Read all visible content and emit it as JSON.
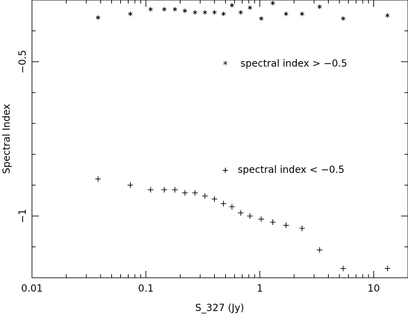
{
  "chart_data": {
    "type": "scatter",
    "xlabel": "S_327 (Jy)",
    "ylabel": "Spectral Index",
    "xscale": "log",
    "xlim": [
      0.01,
      20
    ],
    "ylim": [
      -1.2,
      -0.3
    ],
    "xticks": [
      0.01,
      0.1,
      1,
      10
    ],
    "xtick_labels": [
      "0.01",
      "0.1",
      "1",
      "10"
    ],
    "yticks": [
      -0.5,
      -1
    ],
    "ytick_labels": [
      "−0.5",
      "−1"
    ],
    "grid": false,
    "legend_placement": "right",
    "series": [
      {
        "name": "spectral index > −0.5",
        "marker": "*",
        "points": [
          [
            0.038,
            -0.357
          ],
          [
            0.073,
            -0.345
          ],
          [
            0.11,
            -0.33
          ],
          [
            0.145,
            -0.33
          ],
          [
            0.18,
            -0.33
          ],
          [
            0.22,
            -0.335
          ],
          [
            0.27,
            -0.34
          ],
          [
            0.33,
            -0.34
          ],
          [
            0.4,
            -0.34
          ],
          [
            0.48,
            -0.345
          ],
          [
            0.57,
            -0.317
          ],
          [
            0.68,
            -0.34
          ],
          [
            0.82,
            -0.325
          ],
          [
            1.03,
            -0.36
          ],
          [
            1.3,
            -0.31
          ],
          [
            1.7,
            -0.345
          ],
          [
            2.35,
            -0.345
          ],
          [
            3.35,
            -0.322
          ],
          [
            5.4,
            -0.36
          ],
          [
            13.2,
            -0.35
          ]
        ]
      },
      {
        "name": "spectral index < −0.5",
        "marker": "+",
        "points": [
          [
            0.038,
            -0.88
          ],
          [
            0.073,
            -0.9
          ],
          [
            0.11,
            -0.915
          ],
          [
            0.145,
            -0.915
          ],
          [
            0.18,
            -0.915
          ],
          [
            0.22,
            -0.925
          ],
          [
            0.27,
            -0.925
          ],
          [
            0.33,
            -0.935
          ],
          [
            0.4,
            -0.945
          ],
          [
            0.48,
            -0.96
          ],
          [
            0.57,
            -0.97
          ],
          [
            0.68,
            -0.99
          ],
          [
            0.82,
            -1.0
          ],
          [
            1.03,
            -1.01
          ],
          [
            1.3,
            -1.02
          ],
          [
            1.7,
            -1.03
          ],
          [
            2.35,
            -1.04
          ],
          [
            3.35,
            -1.11
          ],
          [
            5.4,
            -1.17
          ],
          [
            13.2,
            -1.17
          ]
        ]
      }
    ]
  }
}
